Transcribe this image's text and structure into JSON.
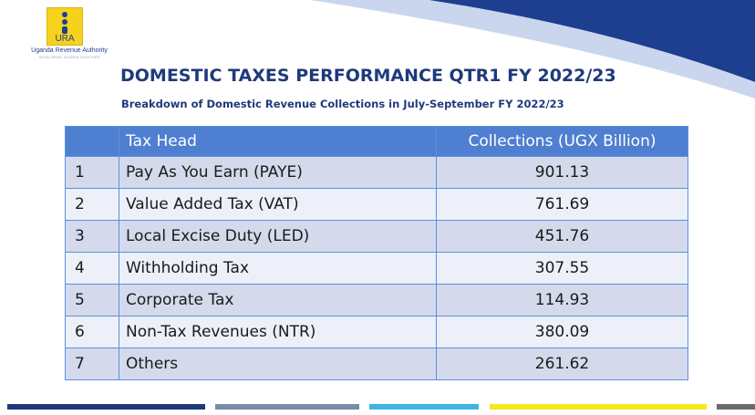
{
  "logo": {
    "abbr": "URA",
    "name": "Uganda Revenue Authority",
    "tagline": "DEVELOPING UGANDA TOGETHER"
  },
  "title": "DOMESTIC TAXES PERFORMANCE QTR1 FY 2022/23",
  "subtitle": "Breakdown of Domestic Revenue Collections in July-September FY 2022/23",
  "table": {
    "headers": [
      "",
      "Tax Head",
      "Collections (UGX Billion)"
    ],
    "rows": [
      {
        "no": "1",
        "head": "Pay As You Earn (PAYE)",
        "value": "901.13"
      },
      {
        "no": "2",
        "head": "Value Added Tax (VAT)",
        "value": "761.69"
      },
      {
        "no": "3",
        "head": "Local Excise Duty (LED)",
        "value": "451.76"
      },
      {
        "no": "4",
        "head": "Withholding Tax",
        "value": "307.55"
      },
      {
        "no": "5",
        "head": "Corporate Tax",
        "value": "114.93"
      },
      {
        "no": "6",
        "head": "Non-Tax Revenues (NTR)",
        "value": "380.09"
      },
      {
        "no": "7",
        "head": "Others",
        "value": "261.62"
      }
    ]
  },
  "colors": {
    "header_bg": "#4f7fd0",
    "row_odd": "#d4daeb",
    "row_even": "#edf0f8",
    "title": "#1f3a7a",
    "swoosh": "#1e3f8f",
    "footer": [
      "#1f3a7a",
      "#7a8ba8",
      "#3fb4e6",
      "#f5e81f",
      "#6b6b6b"
    ]
  }
}
